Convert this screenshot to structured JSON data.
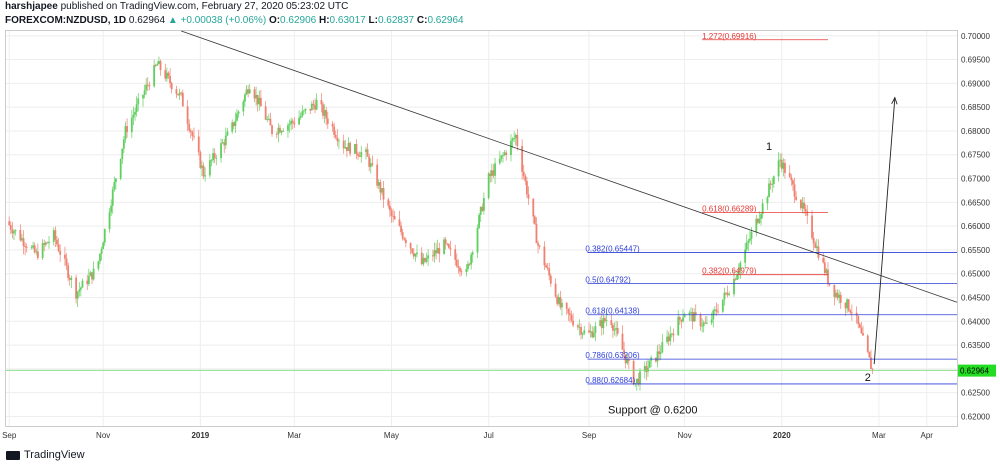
{
  "header": {
    "author": "harshjapee",
    "published_text": "published on TradingView.com, February 27, 2020 05:23:02 UTC",
    "symbol": "FOREXCOM:NZDUSD, 1D",
    "last": "0.62964",
    "change_icon": "triangle-up-icon",
    "change": "+0.00038 (+0.06%)",
    "o_label": "O:",
    "o_value": "0.62906",
    "h_label": "H:",
    "h_value": "0.63017",
    "l_label": "L:",
    "l_value": "0.62837",
    "c_label": "C:",
    "c_value": "0.62964"
  },
  "footer": {
    "brand": "TradingView",
    "logo_icon": "tradingview-logo-icon"
  },
  "colors": {
    "up": "#26a69a",
    "down": "#ef5350",
    "candle_up": "#5fcf5f",
    "candle_down": "#f08070",
    "blue_fib": "#2f3fd8",
    "red_fib": "#e53935",
    "trendline": "#333333",
    "price_tag": "#22dd22",
    "grid": "#eeeeee"
  },
  "chart_data": {
    "type": "candlestick",
    "y_axis": {
      "range": [
        0.618,
        0.701
      ],
      "ticks": [
        "0.62000",
        "0.62500",
        "0.63000",
        "0.63500",
        "0.64000",
        "0.64500",
        "0.65000",
        "0.65500",
        "0.66000",
        "0.66500",
        "0.67000",
        "0.67500",
        "0.68000",
        "0.68500",
        "0.69000",
        "0.69500",
        "0.70000"
      ],
      "position": "right"
    },
    "x_axis": {
      "range": [
        "2018-09-01",
        "2020-04-20"
      ],
      "ticks": [
        {
          "date": "2018-09-03",
          "label": "Sep"
        },
        {
          "date": "2018-11-01",
          "label": "Nov"
        },
        {
          "date": "2019-01-01",
          "label": "2019"
        },
        {
          "date": "2019-03-01",
          "label": "Mar"
        },
        {
          "date": "2019-05-01",
          "label": "May"
        },
        {
          "date": "2019-07-01",
          "label": "Jul"
        },
        {
          "date": "2019-09-02",
          "label": "Sep"
        },
        {
          "date": "2019-11-01",
          "label": "Nov"
        },
        {
          "date": "2020-01-01",
          "label": "2020"
        },
        {
          "date": "2020-03-02",
          "label": "Mar"
        },
        {
          "date": "2020-04-01",
          "label": "Apr"
        }
      ]
    },
    "price_path": [
      [
        "2018-09-01",
        0.661
      ],
      [
        "2018-09-20",
        0.654
      ],
      [
        "2018-10-01",
        0.658
      ],
      [
        "2018-10-15",
        0.646
      ],
      [
        "2018-10-28",
        0.651
      ],
      [
        "2018-11-15",
        0.68
      ],
      [
        "2018-12-05",
        0.694
      ],
      [
        "2018-12-20",
        0.687
      ],
      [
        "2019-01-03",
        0.671
      ],
      [
        "2019-01-20",
        0.68
      ],
      [
        "2019-02-01",
        0.69
      ],
      [
        "2019-02-15",
        0.68
      ],
      [
        "2019-03-01",
        0.682
      ],
      [
        "2019-03-15",
        0.686
      ],
      [
        "2019-04-01",
        0.677
      ],
      [
        "2019-04-15",
        0.675
      ],
      [
        "2019-05-01",
        0.662
      ],
      [
        "2019-05-20",
        0.652
      ],
      [
        "2019-06-03",
        0.656
      ],
      [
        "2019-06-17",
        0.65
      ],
      [
        "2019-07-01",
        0.67
      ],
      [
        "2019-07-18",
        0.679
      ],
      [
        "2019-08-01",
        0.656
      ],
      [
        "2019-08-15",
        0.643
      ],
      [
        "2019-09-01",
        0.637
      ],
      [
        "2019-09-15",
        0.641
      ],
      [
        "2019-10-01",
        0.627
      ],
      [
        "2019-10-15",
        0.633
      ],
      [
        "2019-11-01",
        0.642
      ],
      [
        "2019-11-15",
        0.639
      ],
      [
        "2019-12-01",
        0.648
      ],
      [
        "2019-12-15",
        0.66
      ],
      [
        "2019-12-31",
        0.674
      ],
      [
        "2020-01-15",
        0.663
      ],
      [
        "2020-02-01",
        0.647
      ],
      [
        "2020-02-15",
        0.642
      ],
      [
        "2020-02-27",
        0.62964
      ]
    ],
    "last_price": {
      "value": 0.62964,
      "label": "0.62964"
    },
    "support_line": {
      "value": 0.6297
    },
    "blue_fib_levels": [
      {
        "label": "0.382(0.65447)",
        "value": 0.65447
      },
      {
        "label": "0.5(0.64792)",
        "value": 0.64792
      },
      {
        "label": "0.618(0.64138)",
        "value": 0.64138
      },
      {
        "label": "0.786(0.63206)",
        "value": 0.63206
      },
      {
        "label": "0.88(0.62684)",
        "value": 0.62684
      }
    ],
    "red_fib_levels": [
      {
        "label": "1.272(0.69916)",
        "value": 0.69916
      },
      {
        "label": "0.618(0.66289)",
        "value": 0.66289
      },
      {
        "label": "0.382(0.64979)",
        "value": 0.64979
      }
    ],
    "trendline": {
      "from": [
        "2018-12-20",
        0.701
      ],
      "to": [
        "2020-04-20",
        0.644
      ]
    },
    "projection_arrow": {
      "from": [
        "2020-02-28",
        0.631
      ],
      "to": [
        "2020-03-12",
        0.687
      ]
    },
    "annotations": [
      {
        "text": "1",
        "at": [
          "2019-12-24",
          0.676
        ]
      },
      {
        "text": "2",
        "at": [
          "2020-02-24",
          0.6275
        ]
      },
      {
        "text": "Support @ 0.6200",
        "at": [
          "2019-10-12",
          0.6206
        ]
      }
    ]
  }
}
